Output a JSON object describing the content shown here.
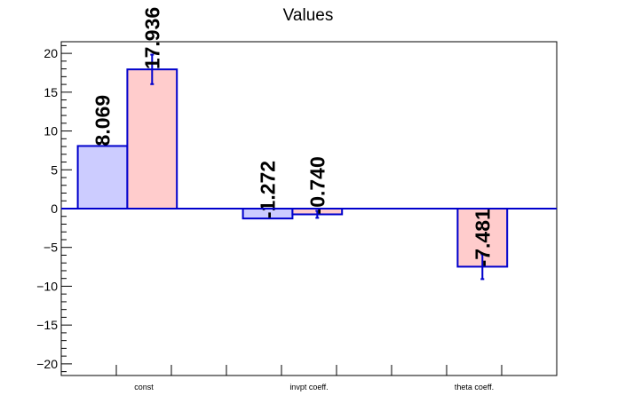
{
  "chart_data": {
    "type": "bar",
    "title": "Values",
    "xlabel": "",
    "ylabel": "",
    "categories": [
      "const",
      "invpt coeff.",
      "theta coeff."
    ],
    "ylim": [
      -21.5,
      21.5
    ],
    "yticks": [
      -20,
      -15,
      -10,
      -5,
      0,
      5,
      10,
      15,
      20
    ],
    "ytick_labels": [
      "−20",
      "−15",
      "−10",
      "−5",
      "0",
      "5",
      "10",
      "15",
      "20"
    ],
    "grid": false,
    "legend": "none",
    "series": [
      {
        "color_fill": "#ccccff",
        "color_edge": "#0000cc",
        "values": [
          8.069,
          -1.272,
          null
        ],
        "labels": [
          "8.069",
          "-1.272",
          ""
        ],
        "errors": [
          null,
          null,
          null
        ]
      },
      {
        "color_fill": "#ffcccc",
        "color_edge": "#0000cc",
        "values": [
          17.936,
          -0.74,
          -7.481
        ],
        "labels": [
          "17.936",
          "-0.740",
          "-7.481"
        ],
        "errors": [
          1.9,
          0.45,
          1.6
        ]
      }
    ]
  }
}
